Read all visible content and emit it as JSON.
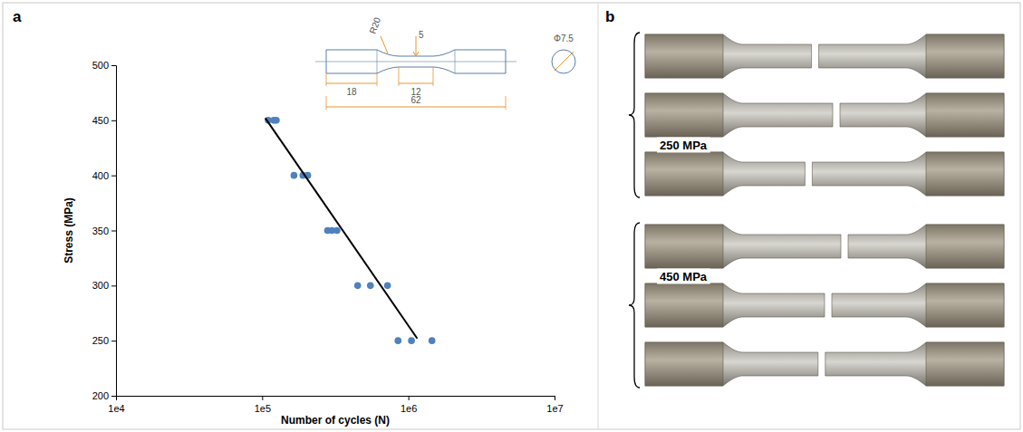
{
  "chart_data": {
    "type": "scatter",
    "x_label": "Number of cycles (N)",
    "y_label": "Stress (MPa)",
    "log": "x",
    "grid": false,
    "xlim": [
      10000,
      10000000
    ],
    "xticks": [
      {
        "value": 10000,
        "label": "1e4"
      },
      {
        "value": 100000,
        "label": "1e5"
      },
      {
        "value": 1000000,
        "label": "1e6"
      },
      {
        "value": 10000000,
        "label": "1e7"
      }
    ],
    "ylim": [
      200,
      500
    ],
    "yticks": [
      200,
      250,
      300,
      350,
      400,
      450,
      500
    ],
    "series": [
      {
        "type": "scatter",
        "color": "#4f81bd",
        "marker": "circle",
        "x": [
          110000,
          120000,
          125000,
          165000,
          190000,
          205000,
          280000,
          300000,
          325000,
          450000,
          550000,
          720000,
          850000,
          1050000,
          1450000
        ],
        "values": [
          450,
          450,
          450,
          400,
          400,
          400,
          350,
          350,
          350,
          300,
          300,
          300,
          250,
          250,
          250
        ]
      },
      {
        "type": "line",
        "color": "#000000",
        "line_style": "solid",
        "x": [
          105000,
          1150000
        ],
        "values": [
          452,
          252
        ]
      }
    ]
  },
  "panel_labels": [
    "a",
    "b"
  ],
  "specimen_drawing": {
    "labels": [
      "R20",
      "5",
      "12",
      "18",
      "62",
      "Φ7.5"
    ]
  },
  "photo": {
    "groups": [
      {
        "label": "250 MPa",
        "count": 3
      },
      {
        "label": "450 MPa",
        "count": 3
      }
    ]
  }
}
